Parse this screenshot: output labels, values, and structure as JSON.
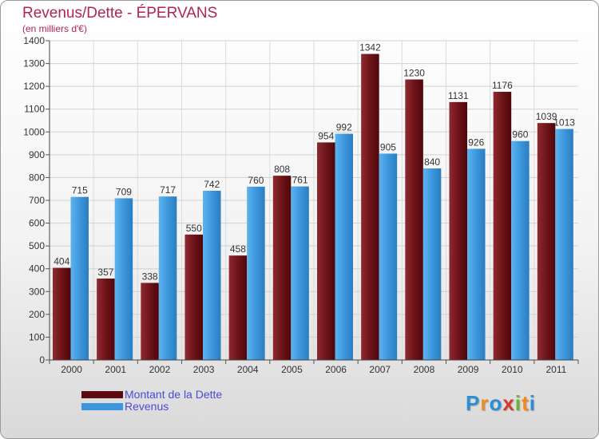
{
  "title": "Revenus/Dette - ÉPERVANS",
  "subtitle": "(en milliers d'€)",
  "chart_data": {
    "type": "bar",
    "categories": [
      "2000",
      "2001",
      "2002",
      "2003",
      "2004",
      "2005",
      "2006",
      "2007",
      "2008",
      "2009",
      "2010",
      "2011"
    ],
    "series": [
      {
        "name": "Montant de la Dette",
        "color": "#7a1c22",
        "values": [
          404,
          357,
          338,
          550,
          458,
          808,
          954,
          1342,
          1230,
          1131,
          1176,
          1039
        ]
      },
      {
        "name": "Revenus",
        "color": "#3d97dd",
        "values": [
          715,
          709,
          717,
          742,
          760,
          761,
          992,
          905,
          840,
          926,
          960,
          1013
        ]
      }
    ],
    "ylim": [
      0,
      1400
    ],
    "yticks": [
      0,
      100,
      200,
      300,
      400,
      500,
      600,
      700,
      800,
      900,
      1000,
      1100,
      1200,
      1300,
      1400
    ],
    "grid": true,
    "legend": "bottom-left"
  },
  "legend": {
    "items": [
      {
        "label": "Montant de la Dette",
        "color": "#5c0b10"
      },
      {
        "label": "Revenus",
        "color": "#3d97dd"
      }
    ]
  },
  "logo": {
    "text": "Proxiti",
    "letters": [
      {
        "char": "P",
        "color": "#2a8fd4"
      },
      {
        "char": "r",
        "color": "#f08a1c"
      },
      {
        "char": "o",
        "color": "#2a8fd4"
      },
      {
        "char": "x",
        "color": "#d33a2c"
      },
      {
        "char": "i",
        "color": "#6ab42d"
      },
      {
        "char": "t",
        "color": "#f08a1c"
      },
      {
        "char": "i",
        "color": "#2a8fd4"
      }
    ]
  }
}
